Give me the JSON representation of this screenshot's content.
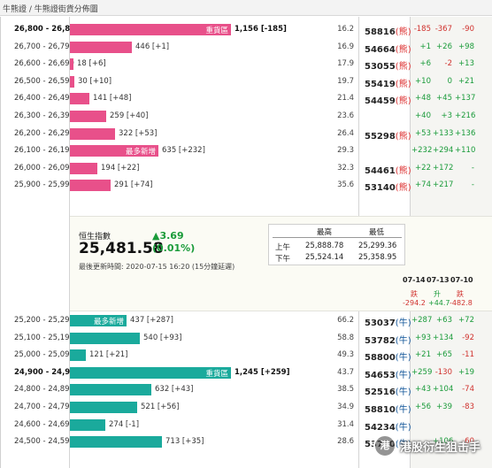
{
  "header": {
    "breadcrumb": "牛熊證 / 牛熊證街貨分佈圖"
  },
  "colors": {
    "bear_bar": "#e8508a",
    "bull_bar": "#1aaa9c",
    "up": "#1a9b3a",
    "down": "#d0312d"
  },
  "bear_rows": [
    {
      "range": "26,800 - 26,899",
      "bar_frac": 1.0,
      "bar_tag": "重貨區",
      "bar_text": "1,156 [-185]",
      "bold": true,
      "num": "16.2",
      "strike": "58816",
      "tag": "(熊)",
      "c1": "-185",
      "c2": "-367",
      "c3": "-90"
    },
    {
      "range": "26,700 - 26,799",
      "bar_frac": 0.386,
      "bar_tag": "",
      "bar_text": "446 [+1]",
      "bold": false,
      "num": "16.9",
      "strike": "54664",
      "tag": "(熊)",
      "c1": "+1",
      "c2": "+26",
      "c3": "+98"
    },
    {
      "range": "26,600 - 26,699",
      "bar_frac": 0.016,
      "bar_tag": "",
      "bar_text": "18 [+6]",
      "bold": false,
      "num": "17.9",
      "strike": "53055",
      "tag": "(熊)",
      "c1": "+6",
      "c2": "-2",
      "c3": "+13"
    },
    {
      "range": "26,500 - 26,599",
      "bar_frac": 0.026,
      "bar_tag": "",
      "bar_text": "30 [+10]",
      "bold": false,
      "num": "19.7",
      "strike": "55419",
      "tag": "(熊)",
      "c1": "+10",
      "c2": "0",
      "c3": "+21"
    },
    {
      "range": "26,400 - 26,499",
      "bar_frac": 0.122,
      "bar_tag": "",
      "bar_text": "141 [+48]",
      "bold": false,
      "num": "21.4",
      "strike": "54459",
      "tag": "(熊)",
      "c1": "+48",
      "c2": "+45",
      "c3": "+137"
    },
    {
      "range": "26,300 - 26,399",
      "bar_frac": 0.224,
      "bar_tag": "",
      "bar_text": "259 [+40]",
      "bold": false,
      "num": "23.6",
      "strike": "",
      "tag": "",
      "c1": "+40",
      "c2": "+3",
      "c3": "+216"
    },
    {
      "range": "26,200 - 26,299",
      "bar_frac": 0.279,
      "bar_tag": "",
      "bar_text": "322 [+53]",
      "bold": false,
      "num": "26.4",
      "strike": "55298",
      "tag": "(熊)",
      "c1": "+53",
      "c2": "+133",
      "c3": "+136"
    },
    {
      "range": "26,100 - 26,199",
      "bar_frac": 0.549,
      "bar_tag": "最多新增",
      "bar_text": "635 [+232]",
      "bold": false,
      "num": "29.3",
      "strike": "",
      "tag": "",
      "c1": "+232",
      "c2": "+294",
      "c3": "+110"
    },
    {
      "range": "26,000 - 26,099",
      "bar_frac": 0.168,
      "bar_tag": "",
      "bar_text": "194 [+22]",
      "bold": false,
      "num": "32.3",
      "strike": "54461",
      "tag": "(熊)",
      "c1": "+22",
      "c2": "+172",
      "c3": "-"
    },
    {
      "range": "25,900 - 25,999",
      "bar_frac": 0.252,
      "bar_tag": "",
      "bar_text": "291 [+74]",
      "bold": false,
      "num": "35.6",
      "strike": "53140",
      "tag": "(熊)",
      "c1": "+74",
      "c2": "+217",
      "c3": "-"
    }
  ],
  "index": {
    "name": "恒生指數",
    "value": "25,481.58",
    "change": "▲3.69",
    "pct": "(0.01%)",
    "updated": "最後更新時間: 2020-07-15 16:20 (15分鐘延遲)",
    "hl": {
      "h_high": "最高",
      "h_low": "最低",
      "am_label": "上午",
      "am_high": "25,888.78",
      "am_low": "25,299.36",
      "pm_label": "下午",
      "pm_high": "25,524.14",
      "pm_low": "25,358.95"
    },
    "dates": [
      "07-14",
      "07-13",
      "07-10"
    ],
    "date_labels": [
      "跌",
      "升",
      "跌"
    ],
    "date_values": [
      "-294.2",
      "+44.7",
      "-482.8"
    ]
  },
  "bull_rows": [
    {
      "range": "25,200 - 25,299",
      "bar_frac": 0.351,
      "bar_tag": "最多新增",
      "bar_text": "437 [+287]",
      "bold": false,
      "num": "66.2",
      "strike": "53037",
      "tag": "(牛)",
      "c1": "+287",
      "c2": "+63",
      "c3": "+72"
    },
    {
      "range": "25,100 - 25,199",
      "bar_frac": 0.434,
      "bar_tag": "",
      "bar_text": "540 [+93]",
      "bold": false,
      "num": "58.8",
      "strike": "53782",
      "tag": "(牛)",
      "c1": "+93",
      "c2": "+134",
      "c3": "-92"
    },
    {
      "range": "25,000 - 25,099",
      "bar_frac": 0.097,
      "bar_tag": "",
      "bar_text": "121 [+21]",
      "bold": false,
      "num": "49.3",
      "strike": "58800",
      "tag": "(牛)",
      "c1": "+21",
      "c2": "+65",
      "c3": "-11"
    },
    {
      "range": "24,900 - 24,999",
      "bar_frac": 1.0,
      "bar_tag": "重貨區",
      "bar_text": "1,245 [+259]",
      "bold": true,
      "num": "43.7",
      "strike": "54653",
      "tag": "(牛)",
      "c1": "+259",
      "c2": "-130",
      "c3": "+19"
    },
    {
      "range": "24,800 - 24,899",
      "bar_frac": 0.508,
      "bar_tag": "",
      "bar_text": "632 [+43]",
      "bold": false,
      "num": "38.5",
      "strike": "52516",
      "tag": "(牛)",
      "c1": "+43",
      "c2": "+104",
      "c3": "-74"
    },
    {
      "range": "24,700 - 24,799",
      "bar_frac": 0.418,
      "bar_tag": "",
      "bar_text": "521 [+56]",
      "bold": false,
      "num": "34.9",
      "strike": "58810",
      "tag": "(牛)",
      "c1": "+56",
      "c2": "+39",
      "c3": "-83"
    },
    {
      "range": "24,600 - 24,699",
      "bar_frac": 0.22,
      "bar_tag": "",
      "bar_text": "274 [-1]",
      "bold": false,
      "num": "31.4",
      "strike": "54234",
      "tag": "(牛)",
      "c1": "",
      "c2": "",
      "c3": ""
    },
    {
      "range": "24,500 - 24,599",
      "bar_frac": 0.573,
      "bar_tag": "",
      "bar_text": "713 [+35]",
      "bold": false,
      "num": "28.6",
      "strike": "53780",
      "tag": "(牛)",
      "c1": "",
      "c2": "+106",
      "c3": "-60"
    }
  ],
  "watermark": {
    "logo": "港",
    "text": "港股衍生狙击手"
  }
}
